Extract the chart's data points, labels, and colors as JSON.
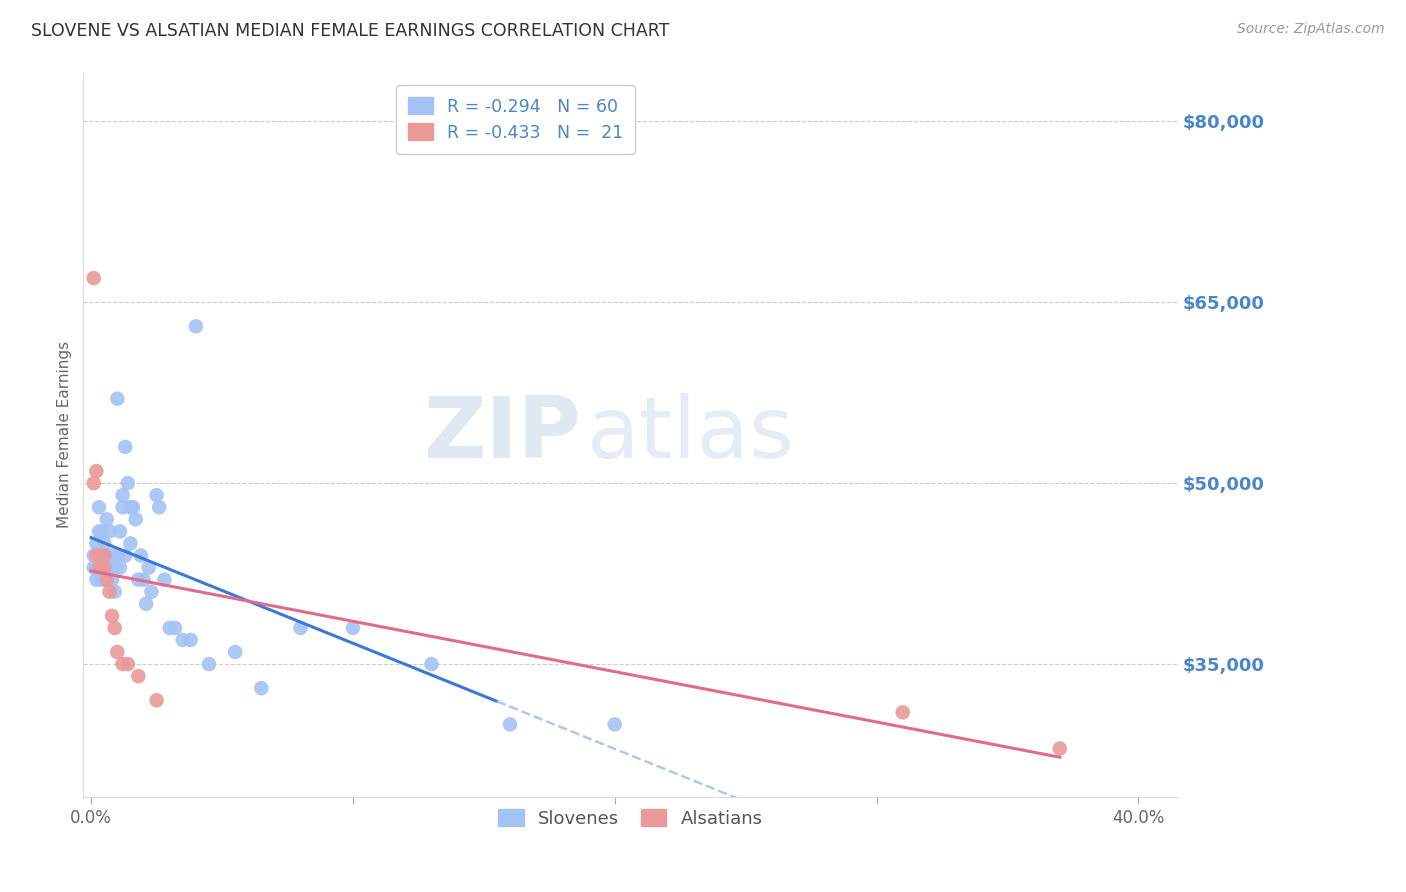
{
  "title": "SLOVENE VS ALSATIAN MEDIAN FEMALE EARNINGS CORRELATION CHART",
  "source": "Source: ZipAtlas.com",
  "ylabel": "Median Female Earnings",
  "right_ytick_labels": [
    "$80,000",
    "$65,000",
    "$50,000",
    "$35,000"
  ],
  "right_ytick_values": [
    80000,
    65000,
    50000,
    35000
  ],
  "ymin": 24000,
  "ymax": 84000,
  "xmin": -0.003,
  "xmax": 0.415,
  "color_slovene": "#a4c2f4",
  "color_alsatian": "#ea9999",
  "color_trendline_slovene": "#3c78d8",
  "color_trendline_alsatian": "#e06c8a",
  "color_trendline_ext_slovene": "#b4c7e7",
  "color_trendline_ext_alsatian": "#b4c7e7",
  "color_right_axis": "#4a86c8",
  "color_grid": "#cccccc",
  "watermark_zip_color": "#c5d5e8",
  "watermark_atlas_color": "#c8d8e8",
  "slovene_x": [
    0.001,
    0.001,
    0.002,
    0.002,
    0.002,
    0.003,
    0.003,
    0.003,
    0.004,
    0.004,
    0.004,
    0.005,
    0.005,
    0.005,
    0.006,
    0.006,
    0.006,
    0.007,
    0.007,
    0.007,
    0.008,
    0.008,
    0.008,
    0.009,
    0.009,
    0.01,
    0.01,
    0.011,
    0.011,
    0.012,
    0.012,
    0.013,
    0.013,
    0.014,
    0.015,
    0.015,
    0.016,
    0.017,
    0.018,
    0.019,
    0.02,
    0.021,
    0.022,
    0.023,
    0.025,
    0.026,
    0.028,
    0.03,
    0.032,
    0.035,
    0.038,
    0.04,
    0.045,
    0.055,
    0.065,
    0.08,
    0.1,
    0.13,
    0.16,
    0.2
  ],
  "slovene_y": [
    44000,
    43000,
    45000,
    43000,
    42000,
    48000,
    46000,
    43000,
    46000,
    44000,
    42000,
    45000,
    43000,
    42000,
    47000,
    44000,
    43000,
    46000,
    44000,
    43000,
    44000,
    43000,
    42000,
    41000,
    43000,
    44000,
    57000,
    43000,
    46000,
    49000,
    48000,
    53000,
    44000,
    50000,
    48000,
    45000,
    48000,
    47000,
    42000,
    44000,
    42000,
    40000,
    43000,
    41000,
    49000,
    48000,
    42000,
    38000,
    38000,
    37000,
    37000,
    63000,
    35000,
    36000,
    33000,
    38000,
    38000,
    35000,
    30000,
    30000
  ],
  "alsatian_x": [
    0.001,
    0.001,
    0.002,
    0.002,
    0.003,
    0.003,
    0.004,
    0.004,
    0.005,
    0.005,
    0.006,
    0.007,
    0.008,
    0.009,
    0.01,
    0.012,
    0.014,
    0.018,
    0.025,
    0.31,
    0.37
  ],
  "alsatian_y": [
    67000,
    50000,
    51000,
    44000,
    44000,
    43000,
    43000,
    43000,
    44000,
    43000,
    42000,
    41000,
    39000,
    38000,
    36000,
    35000,
    35000,
    34000,
    32000,
    31000,
    28000
  ],
  "slovene_trend_x0": 0.0,
  "slovene_trend_x1": 0.155,
  "slovene_trend_ext_x0": 0.155,
  "slovene_trend_ext_x1": 0.41,
  "alsatian_trend_x0": 0.0,
  "alsatian_trend_x1": 0.37
}
